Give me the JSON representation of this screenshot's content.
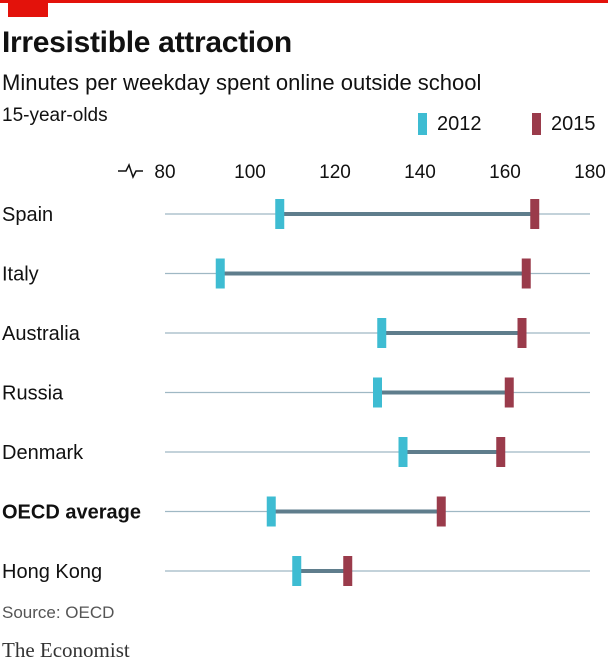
{
  "header": {
    "title": "Irresistible attraction",
    "subtitle": "Minutes per weekday spent online outside school",
    "note": "15-year-olds"
  },
  "colors": {
    "accent_red": "#e3120b",
    "series_2012": "#3ebcd2",
    "series_2015": "#9a3b4b",
    "connector": "#5f7d8c",
    "gridline": "#9fb8c4"
  },
  "chart_data": {
    "type": "dumbbell",
    "title": "Irresistible attraction",
    "subtitle": "Minutes per weekday spent online outside school",
    "xlabel": "",
    "ylabel": "",
    "xlim": [
      80,
      180
    ],
    "x_ticks": [
      80,
      100,
      120,
      140,
      160,
      180
    ],
    "x_axis_break": true,
    "axis_position": "top",
    "grid": true,
    "legend_position": "top-right",
    "categories": [
      "Spain",
      "Italy",
      "Australia",
      "Russia",
      "Denmark",
      "OECD average",
      "Hong Kong"
    ],
    "highlighted_category": "OECD average",
    "series": [
      {
        "name": "2012",
        "color": "#3ebcd2",
        "values": [
          107,
          93,
          131,
          130,
          136,
          105,
          111
        ]
      },
      {
        "name": "2015",
        "color": "#9a3b4b",
        "values": [
          167,
          165,
          164,
          161,
          159,
          145,
          123
        ]
      }
    ]
  },
  "footer": {
    "source": "Source: OECD",
    "logo_text": "The Economist"
  }
}
